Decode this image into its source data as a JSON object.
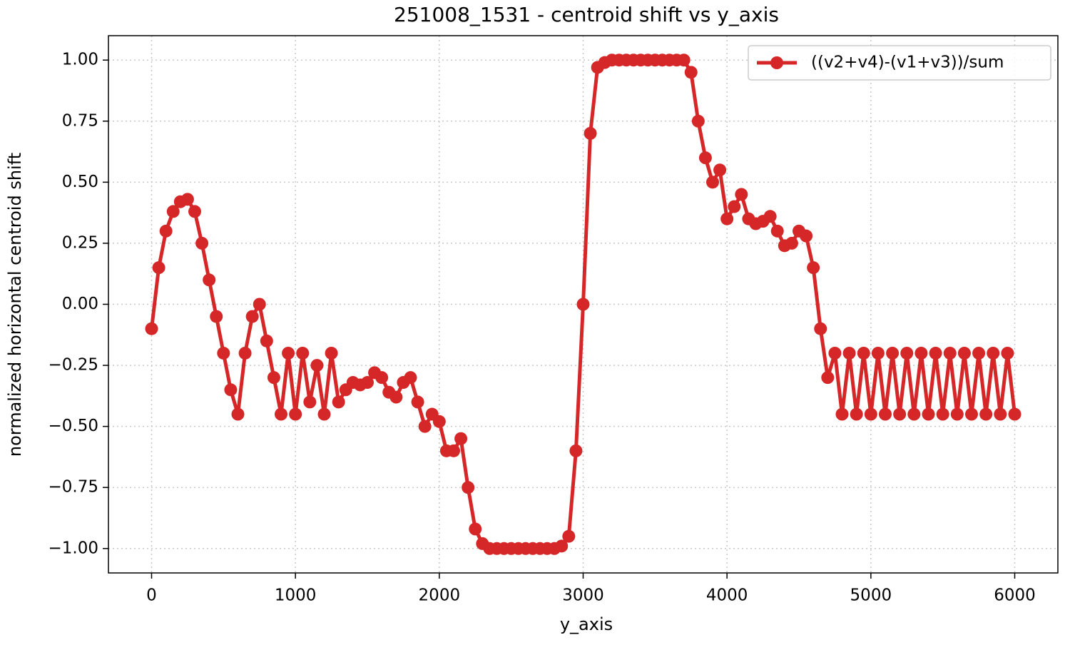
{
  "chart_data": {
    "type": "line",
    "title": "251008_1531 - centroid shift vs y_axis",
    "xlabel": "y_axis",
    "ylabel": "normalized horizontal centroid shift",
    "legend": "upper right",
    "grid": true,
    "x": [
      0,
      50,
      100,
      150,
      200,
      250,
      300,
      350,
      400,
      450,
      500,
      550,
      600,
      650,
      700,
      750,
      800,
      850,
      900,
      950,
      1000,
      1050,
      1100,
      1150,
      1200,
      1250,
      1300,
      1350,
      1400,
      1450,
      1500,
      1550,
      1600,
      1650,
      1700,
      1750,
      1800,
      1850,
      1900,
      1950,
      2000,
      2050,
      2100,
      2150,
      2200,
      2250,
      2300,
      2350,
      2400,
      2450,
      2500,
      2550,
      2600,
      2650,
      2700,
      2750,
      2800,
      2850,
      2900,
      2950,
      3000,
      3050,
      3100,
      3150,
      3200,
      3250,
      3300,
      3350,
      3400,
      3450,
      3500,
      3550,
      3600,
      3650,
      3700,
      3750,
      3800,
      3850,
      3900,
      3950,
      4000,
      4050,
      4100,
      4150,
      4200,
      4250,
      4300,
      4350,
      4400,
      4450,
      4500,
      4550,
      4600,
      4650,
      4700,
      4750,
      4800,
      4850,
      4900,
      4950,
      5000,
      5050,
      5100,
      5150,
      5200,
      5250,
      5300,
      5350,
      5400,
      5450,
      5500,
      5550,
      5600,
      5650,
      5700,
      5750,
      5800,
      5850,
      5900,
      5950,
      6000
    ],
    "series": [
      {
        "name": "((v2+v4)-(v1+v3))/sum",
        "color": "#d62728",
        "values": [
          -0.1,
          0.15,
          0.3,
          0.38,
          0.42,
          0.43,
          0.38,
          0.25,
          0.1,
          -0.05,
          -0.2,
          -0.35,
          -0.45,
          -0.2,
          -0.05,
          0.0,
          -0.15,
          -0.3,
          -0.45,
          -0.2,
          -0.45,
          -0.2,
          -0.4,
          -0.25,
          -0.45,
          -0.2,
          -0.4,
          -0.35,
          -0.32,
          -0.33,
          -0.32,
          -0.28,
          -0.3,
          -0.36,
          -0.38,
          -0.32,
          -0.3,
          -0.4,
          -0.5,
          -0.45,
          -0.48,
          -0.6,
          -0.6,
          -0.55,
          -0.75,
          -0.92,
          -0.98,
          -1.0,
          -1.0,
          -1.0,
          -1.0,
          -1.0,
          -1.0,
          -1.0,
          -1.0,
          -1.0,
          -1.0,
          -0.99,
          -0.95,
          -0.6,
          0.0,
          0.7,
          0.97,
          0.99,
          1.0,
          1.0,
          1.0,
          1.0,
          1.0,
          1.0,
          1.0,
          1.0,
          1.0,
          1.0,
          1.0,
          0.95,
          0.75,
          0.6,
          0.5,
          0.55,
          0.35,
          0.4,
          0.45,
          0.35,
          0.33,
          0.34,
          0.36,
          0.3,
          0.24,
          0.25,
          0.3,
          0.28,
          0.15,
          -0.1,
          -0.3,
          -0.2,
          -0.45,
          -0.2,
          -0.45,
          -0.2,
          -0.45,
          -0.2,
          -0.45,
          -0.2,
          -0.45,
          -0.2,
          -0.45,
          -0.2,
          -0.45,
          -0.2,
          -0.45,
          -0.2,
          -0.45,
          -0.2,
          -0.45,
          -0.2,
          -0.45,
          -0.2,
          -0.45,
          -0.2,
          -0.45
        ]
      }
    ],
    "xlim": [
      -300,
      6300
    ],
    "xticks": [
      0,
      1000,
      2000,
      3000,
      4000,
      5000,
      6000
    ],
    "ylim": [
      -1.1,
      1.1
    ],
    "yticks": [
      {
        "value": -1.0,
        "label": "−1.00"
      },
      {
        "value": -0.75,
        "label": "−0.75"
      },
      {
        "value": -0.5,
        "label": "−0.50"
      },
      {
        "value": -0.25,
        "label": "−0.25"
      },
      {
        "value": 0.0,
        "label": "0.00"
      },
      {
        "value": 0.25,
        "label": "0.25"
      },
      {
        "value": 0.5,
        "label": "0.50"
      },
      {
        "value": 0.75,
        "label": "0.75"
      },
      {
        "value": 1.0,
        "label": "1.00"
      }
    ]
  }
}
